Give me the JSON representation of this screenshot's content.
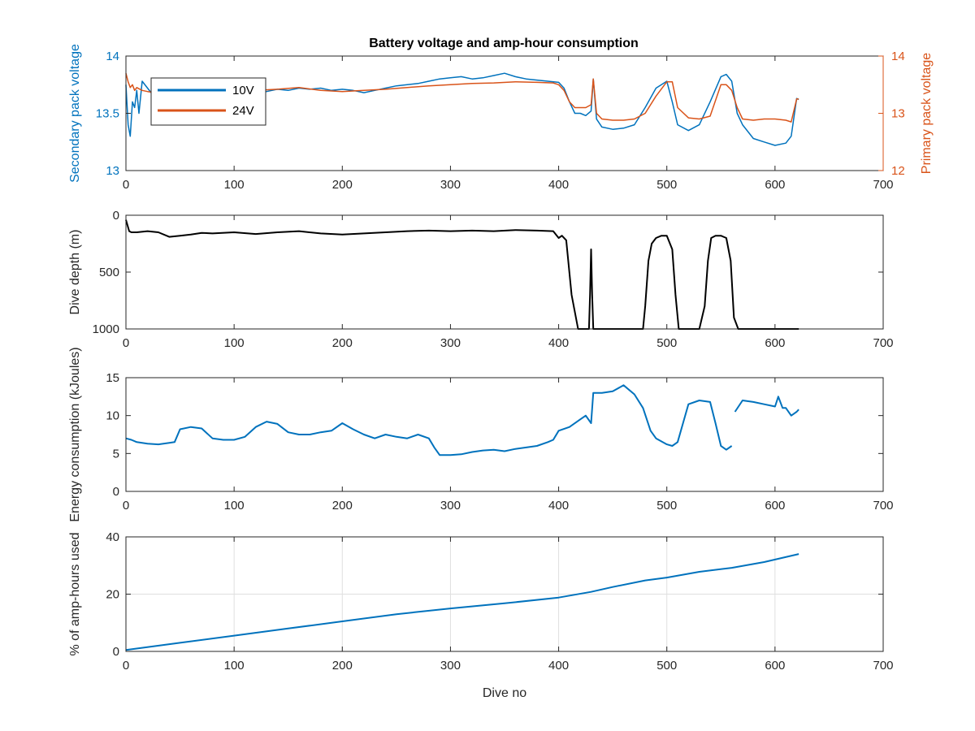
{
  "figure": {
    "title": "Battery voltage and amp-hour consumption"
  },
  "colors": {
    "blue": "#0072BD",
    "orange": "#D95319",
    "black": "#000000",
    "grid": "#dfdfdf",
    "axis": "#262626"
  },
  "chart_data": [
    {
      "type": "line",
      "title": "Battery voltage and amp-hour consumption",
      "xlabel": "",
      "ylabel": "Secondary pack voltage",
      "ylabel_right": "Primary pack voltage",
      "xlim": [
        0,
        700
      ],
      "ylim": [
        13,
        14
      ],
      "ylim_right": [
        12,
        14
      ],
      "xticks": [
        0,
        100,
        200,
        300,
        400,
        500,
        600,
        700
      ],
      "yticks": [
        13,
        13.5,
        14
      ],
      "yticks_right": [
        12,
        13,
        14
      ],
      "grid": false,
      "legend_position": "top-left",
      "series": [
        {
          "name": "10V",
          "axis": "left",
          "color": "#0072BD",
          "x": [
            0,
            2,
            4,
            6,
            8,
            10,
            12,
            15,
            20,
            30,
            40,
            50,
            60,
            70,
            80,
            90,
            100,
            110,
            120,
            130,
            140,
            150,
            160,
            170,
            180,
            190,
            200,
            210,
            220,
            230,
            240,
            250,
            260,
            270,
            280,
            290,
            300,
            310,
            320,
            330,
            340,
            350,
            360,
            370,
            380,
            390,
            400,
            405,
            410,
            415,
            420,
            425,
            430,
            432,
            435,
            440,
            450,
            460,
            470,
            480,
            490,
            500,
            505,
            510,
            520,
            530,
            540,
            550,
            555,
            560,
            565,
            570,
            580,
            590,
            600,
            610,
            615,
            620,
            622
          ],
          "y": [
            13.75,
            13.4,
            13.3,
            13.6,
            13.55,
            13.7,
            13.5,
            13.78,
            13.72,
            13.6,
            13.62,
            13.65,
            13.66,
            13.68,
            13.7,
            13.69,
            13.7,
            13.68,
            13.7,
            13.69,
            13.71,
            13.7,
            13.72,
            13.71,
            13.72,
            13.7,
            13.71,
            13.7,
            13.68,
            13.7,
            13.72,
            13.74,
            13.75,
            13.76,
            13.78,
            13.8,
            13.81,
            13.82,
            13.8,
            13.81,
            13.83,
            13.85,
            13.82,
            13.8,
            13.79,
            13.78,
            13.77,
            13.72,
            13.6,
            13.5,
            13.5,
            13.48,
            13.52,
            13.8,
            13.45,
            13.38,
            13.36,
            13.37,
            13.4,
            13.55,
            13.72,
            13.78,
            13.6,
            13.4,
            13.35,
            13.4,
            13.6,
            13.82,
            13.84,
            13.78,
            13.5,
            13.4,
            13.28,
            13.25,
            13.22,
            13.24,
            13.3,
            13.63,
            13.62
          ]
        },
        {
          "name": "24V",
          "axis": "right",
          "color": "#D95319",
          "x": [
            0,
            2,
            4,
            6,
            8,
            10,
            15,
            20,
            30,
            40,
            50,
            60,
            80,
            100,
            120,
            140,
            160,
            180,
            200,
            220,
            240,
            260,
            280,
            300,
            320,
            340,
            360,
            380,
            395,
            400,
            405,
            410,
            415,
            420,
            425,
            430,
            432,
            435,
            440,
            450,
            460,
            470,
            480,
            490,
            500,
            505,
            510,
            520,
            530,
            540,
            550,
            555,
            560,
            565,
            570,
            580,
            590,
            600,
            610,
            615,
            620,
            622
          ],
          "y": [
            13.7,
            13.55,
            13.45,
            13.5,
            13.4,
            13.45,
            13.4,
            13.38,
            13.35,
            13.4,
            13.42,
            13.4,
            13.45,
            13.42,
            13.4,
            13.42,
            13.45,
            13.4,
            13.38,
            13.4,
            13.42,
            13.45,
            13.48,
            13.5,
            13.52,
            13.53,
            13.55,
            13.54,
            13.53,
            13.5,
            13.4,
            13.2,
            13.1,
            13.1,
            13.1,
            13.15,
            13.6,
            13.0,
            12.9,
            12.88,
            12.88,
            12.9,
            13.0,
            13.3,
            13.55,
            13.55,
            13.1,
            12.92,
            12.9,
            12.95,
            13.5,
            13.5,
            13.4,
            13.1,
            12.9,
            12.88,
            12.9,
            12.9,
            12.88,
            12.85,
            13.25,
            13.25
          ]
        }
      ]
    },
    {
      "type": "line",
      "title": "",
      "xlabel": "",
      "ylabel": "Dive depth (m)",
      "xlim": [
        0,
        700
      ],
      "ylim": [
        0,
        1000
      ],
      "y_reversed": true,
      "xticks": [
        0,
        100,
        200,
        300,
        400,
        500,
        600,
        700
      ],
      "yticks": [
        0,
        500,
        1000
      ],
      "grid": false,
      "series": [
        {
          "color": "#000000",
          "x": [
            0,
            3,
            5,
            10,
            20,
            30,
            40,
            50,
            60,
            70,
            80,
            100,
            120,
            140,
            160,
            180,
            200,
            220,
            240,
            260,
            280,
            300,
            320,
            340,
            360,
            380,
            395,
            400,
            403,
            407,
            412,
            418,
            425,
            428,
            429,
            430,
            431,
            432,
            433,
            434,
            436,
            440,
            450,
            460,
            470,
            478,
            480,
            483,
            486,
            490,
            495,
            500,
            505,
            508,
            511,
            515,
            520,
            530,
            535,
            538,
            541,
            545,
            550,
            555,
            559,
            562,
            566,
            575,
            590,
            600,
            610,
            620,
            622
          ],
          "y": [
            40,
            140,
            150,
            150,
            140,
            150,
            190,
            180,
            170,
            155,
            160,
            150,
            165,
            150,
            140,
            160,
            170,
            160,
            150,
            140,
            135,
            140,
            135,
            140,
            130,
            135,
            140,
            200,
            180,
            220,
            700,
            1000,
            1000,
            1000,
            700,
            300,
            700,
            1000,
            1000,
            1000,
            1000,
            1000,
            1000,
            1000,
            1000,
            1000,
            800,
            400,
            250,
            200,
            180,
            180,
            300,
            700,
            1000,
            1000,
            1000,
            1000,
            800,
            400,
            200,
            180,
            180,
            200,
            400,
            900,
            1000,
            1000,
            1000,
            1000,
            1000,
            1000,
            1000
          ]
        }
      ]
    },
    {
      "type": "line",
      "title": "",
      "xlabel": "",
      "ylabel": "Energy consumption (kJoules)",
      "xlim": [
        0,
        700
      ],
      "ylim": [
        0,
        15
      ],
      "xticks": [
        0,
        100,
        200,
        300,
        400,
        500,
        600,
        700
      ],
      "yticks": [
        0,
        5,
        10,
        15
      ],
      "grid": false,
      "series": [
        {
          "color": "#0072BD",
          "x": [
            0,
            5,
            10,
            20,
            30,
            40,
            45,
            50,
            60,
            70,
            80,
            90,
            100,
            110,
            120,
            130,
            140,
            150,
            160,
            170,
            180,
            190,
            200,
            210,
            220,
            230,
            240,
            250,
            260,
            270,
            280,
            285,
            290,
            300,
            310,
            320,
            330,
            340,
            350,
            360,
            370,
            380,
            390,
            395,
            400,
            410,
            420,
            425,
            430,
            432,
            440,
            450,
            460,
            470,
            478,
            485,
            490,
            500,
            505,
            510,
            520,
            530,
            540,
            545,
            550,
            555,
            560
          ],
          "y": [
            7,
            6.8,
            6.5,
            6.3,
            6.2,
            6.4,
            6.5,
            8.2,
            8.5,
            8.3,
            7.0,
            6.8,
            6.8,
            7.2,
            8.5,
            9.2,
            8.9,
            7.8,
            7.5,
            7.5,
            7.8,
            8.0,
            9.0,
            8.2,
            7.5,
            7.0,
            7.5,
            7.2,
            7.0,
            7.5,
            7.0,
            5.8,
            4.8,
            4.8,
            4.9,
            5.2,
            5.4,
            5.5,
            5.3,
            5.6,
            5.8,
            6.0,
            6.5,
            6.8,
            8.0,
            8.5,
            9.5,
            10.0,
            9.0,
            13.0,
            13.0,
            13.2,
            14.0,
            12.8,
            11.0,
            8.0,
            7.0,
            6.2,
            6.0,
            6.5,
            11.5,
            12.0,
            11.8,
            9.0,
            6.0,
            5.5,
            6.0
          ]
        },
        {
          "color": "#0072BD",
          "x": [
            563,
            570,
            580,
            590,
            600,
            603,
            607,
            610,
            615,
            620,
            622
          ],
          "y": [
            10.5,
            12.0,
            11.8,
            11.5,
            11.2,
            12.5,
            11.0,
            11.0,
            10.0,
            10.5,
            10.8
          ]
        }
      ]
    },
    {
      "type": "line",
      "title": "",
      "xlabel": "Dive no",
      "ylabel": "% of amp-hours used",
      "xlim": [
        0,
        700
      ],
      "ylim": [
        0,
        40
      ],
      "xticks": [
        0,
        100,
        200,
        300,
        400,
        500,
        600,
        700
      ],
      "yticks": [
        0,
        20,
        40
      ],
      "grid": true,
      "series": [
        {
          "color": "#0072BD",
          "x": [
            0,
            50,
            100,
            150,
            200,
            250,
            300,
            350,
            400,
            430,
            450,
            480,
            500,
            530,
            560,
            590,
            622
          ],
          "y": [
            0.5,
            3.0,
            5.5,
            8.0,
            10.5,
            13.0,
            15.0,
            16.8,
            18.8,
            20.8,
            22.5,
            24.8,
            25.8,
            27.8,
            29.2,
            31.2,
            34.0
          ]
        }
      ]
    }
  ]
}
